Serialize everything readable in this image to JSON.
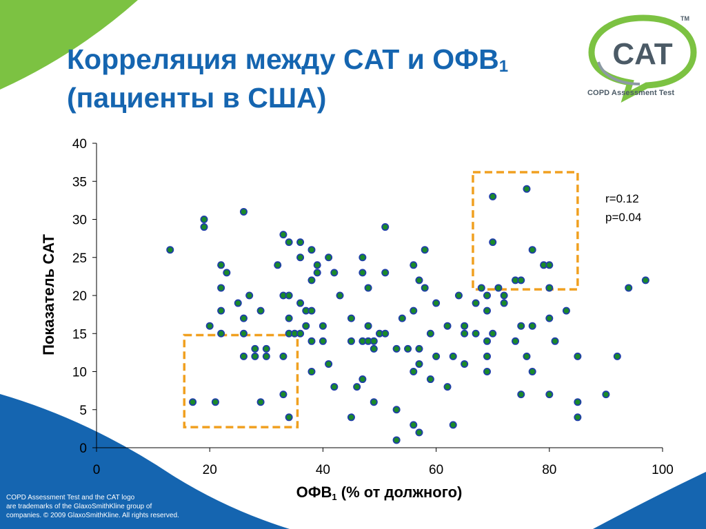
{
  "slide": {
    "title_line1": "Корреляция между CAT и ОФВ",
    "title_line1_sub": "1",
    "title_line2": "(пациенты в США)"
  },
  "logo": {
    "text": "CAT",
    "tagline": "COPD Assessment Test",
    "trademark": "TM"
  },
  "stats": {
    "r": "r=0.12",
    "p": "p=0.04"
  },
  "axes": {
    "ylabel": "Показатель CAT",
    "xlabel_prefix": "ОФВ",
    "xlabel_sub": "1",
    "xlabel_suffix": " (% от должного)"
  },
  "footer": {
    "line1": "COPD Assessment Test and the CAT logo",
    "line2": "are trademarks of the GlaxoSmithKline group of",
    "line3": "companies. © 2009 GlaxoSmithKline. All rights reserved."
  },
  "colors": {
    "title": "#1565b0",
    "point_fill": "#1a8a2a",
    "point_stroke": "#1f3ea8",
    "highlight_box": "#f0a020",
    "green_swoosh": "#7cc242",
    "blue_swoosh": "#1565b0"
  },
  "chart_data": {
    "type": "scatter",
    "xlim": [
      0,
      100
    ],
    "ylim": [
      0,
      40
    ],
    "xticks": [
      0,
      20,
      40,
      60,
      80,
      100
    ],
    "yticks": [
      0,
      5,
      10,
      15,
      20,
      25,
      30,
      35,
      40
    ],
    "grid": false,
    "points": [
      [
        13,
        26
      ],
      [
        17,
        6
      ],
      [
        19,
        30
      ],
      [
        19,
        29
      ],
      [
        20,
        16
      ],
      [
        21,
        6
      ],
      [
        22,
        24
      ],
      [
        22,
        21
      ],
      [
        22,
        18
      ],
      [
        22,
        15
      ],
      [
        23,
        23
      ],
      [
        25,
        19
      ],
      [
        26,
        31
      ],
      [
        26,
        17
      ],
      [
        26,
        15
      ],
      [
        26,
        12
      ],
      [
        27,
        20
      ],
      [
        28,
        13
      ],
      [
        28,
        12
      ],
      [
        29,
        18
      ],
      [
        29,
        6
      ],
      [
        30,
        13
      ],
      [
        30,
        12
      ],
      [
        32,
        24
      ],
      [
        33,
        28
      ],
      [
        33,
        20
      ],
      [
        33,
        12
      ],
      [
        33,
        7
      ],
      [
        34,
        27
      ],
      [
        34,
        20
      ],
      [
        34,
        17
      ],
      [
        34,
        15
      ],
      [
        34,
        4
      ],
      [
        35,
        15
      ],
      [
        36,
        27
      ],
      [
        36,
        25
      ],
      [
        36,
        19
      ],
      [
        36,
        15
      ],
      [
        37,
        18
      ],
      [
        37,
        16
      ],
      [
        38,
        26
      ],
      [
        38,
        22
      ],
      [
        38,
        18
      ],
      [
        38,
        14
      ],
      [
        38,
        10
      ],
      [
        39,
        24
      ],
      [
        39,
        23
      ],
      [
        40,
        16
      ],
      [
        40,
        14
      ],
      [
        41,
        25
      ],
      [
        41,
        11
      ],
      [
        42,
        23
      ],
      [
        42,
        8
      ],
      [
        43,
        20
      ],
      [
        45,
        17
      ],
      [
        45,
        14
      ],
      [
        45,
        4
      ],
      [
        46,
        8
      ],
      [
        47,
        25
      ],
      [
        47,
        23
      ],
      [
        47,
        14
      ],
      [
        47,
        9
      ],
      [
        48,
        21
      ],
      [
        48,
        16
      ],
      [
        48,
        14
      ],
      [
        49,
        14
      ],
      [
        49,
        13
      ],
      [
        49,
        6
      ],
      [
        50,
        15
      ],
      [
        51,
        29
      ],
      [
        51,
        23
      ],
      [
        51,
        15
      ],
      [
        53,
        13
      ],
      [
        53,
        5
      ],
      [
        53,
        1
      ],
      [
        54,
        17
      ],
      [
        55,
        13
      ],
      [
        56,
        24
      ],
      [
        56,
        18
      ],
      [
        56,
        10
      ],
      [
        56,
        3
      ],
      [
        57,
        22
      ],
      [
        57,
        13
      ],
      [
        57,
        11
      ],
      [
        57,
        2
      ],
      [
        58,
        26
      ],
      [
        58,
        21
      ],
      [
        59,
        15
      ],
      [
        59,
        9
      ],
      [
        60,
        19
      ],
      [
        60,
        12
      ],
      [
        62,
        16
      ],
      [
        62,
        8
      ],
      [
        63,
        12
      ],
      [
        63,
        3
      ],
      [
        64,
        20
      ],
      [
        65,
        16
      ],
      [
        65,
        15
      ],
      [
        65,
        11
      ],
      [
        67,
        19
      ],
      [
        67,
        15
      ],
      [
        68,
        21
      ],
      [
        69,
        20
      ],
      [
        69,
        18
      ],
      [
        69,
        14
      ],
      [
        69,
        12
      ],
      [
        69,
        10
      ],
      [
        70,
        33
      ],
      [
        70,
        27
      ],
      [
        70,
        15
      ],
      [
        71,
        21
      ],
      [
        72,
        20
      ],
      [
        72,
        19
      ],
      [
        74,
        22
      ],
      [
        74,
        14
      ],
      [
        75,
        22
      ],
      [
        75,
        16
      ],
      [
        75,
        7
      ],
      [
        76,
        34
      ],
      [
        76,
        12
      ],
      [
        77,
        26
      ],
      [
        77,
        16
      ],
      [
        77,
        10
      ],
      [
        79,
        24
      ],
      [
        80,
        24
      ],
      [
        80,
        21
      ],
      [
        80,
        17
      ],
      [
        80,
        7
      ],
      [
        81,
        14
      ],
      [
        83,
        18
      ],
      [
        85,
        12
      ],
      [
        85,
        6
      ],
      [
        85,
        4
      ],
      [
        90,
        7
      ],
      [
        92,
        12
      ],
      [
        94,
        21
      ],
      [
        97,
        22
      ]
    ],
    "highlight_boxes": [
      {
        "x": [
          15.5,
          35.5
        ],
        "y": [
          2.7,
          14.8
        ]
      },
      {
        "x": [
          66.5,
          85
        ],
        "y": [
          20.8,
          36.2
        ]
      }
    ]
  }
}
